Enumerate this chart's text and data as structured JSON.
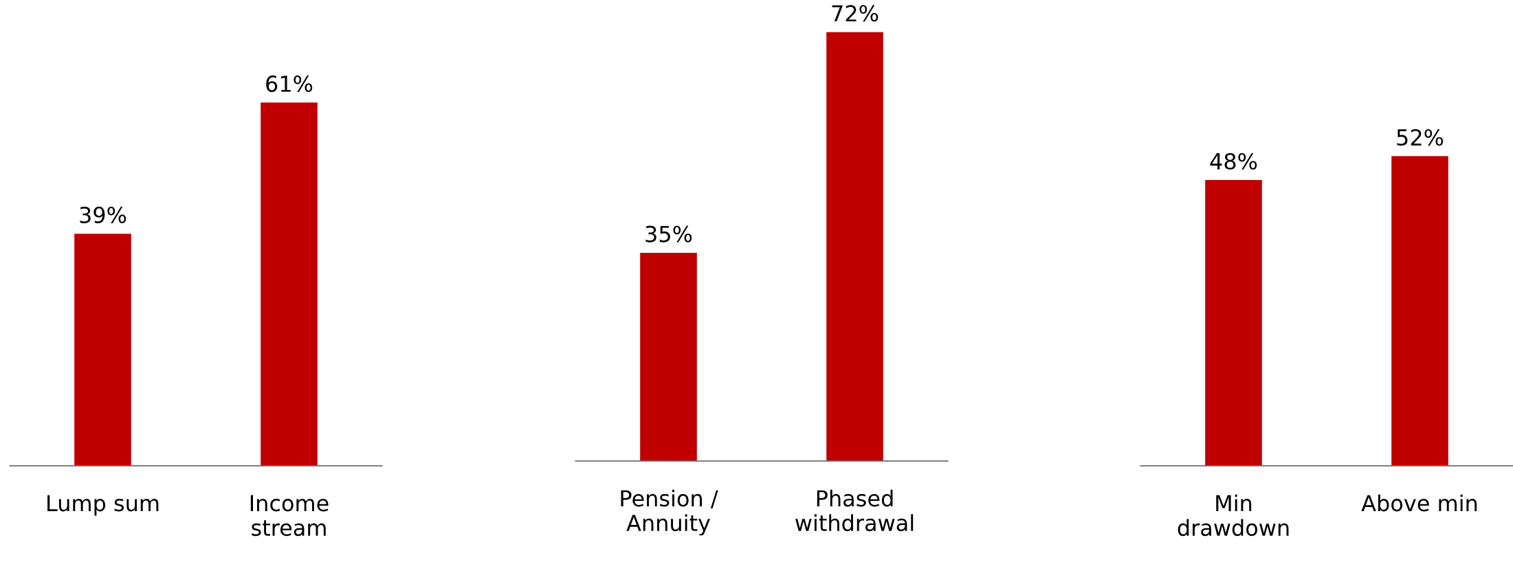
{
  "chart_data": [
    {
      "type": "bar",
      "categories": [
        "Lump sum",
        "Income\nstream"
      ],
      "values": [
        39,
        61
      ],
      "value_labels": [
        "39%",
        "61%"
      ],
      "color": "#c00000",
      "tick_labels": "x",
      "grid": false
    },
    {
      "type": "bar",
      "categories": [
        "Pension /\nAnnuity",
        "Phased\nwithdrawal"
      ],
      "values": [
        35,
        72
      ],
      "value_labels": [
        "35%",
        "72%"
      ],
      "color": "#c00000",
      "tick_labels": "x",
      "grid": false
    },
    {
      "type": "bar",
      "categories": [
        "Min\ndrawdown",
        "Above min"
      ],
      "values": [
        48,
        52
      ],
      "value_labels": [
        "48%",
        "52%"
      ],
      "color": "#c00000",
      "tick_labels": "x",
      "grid": false
    }
  ]
}
